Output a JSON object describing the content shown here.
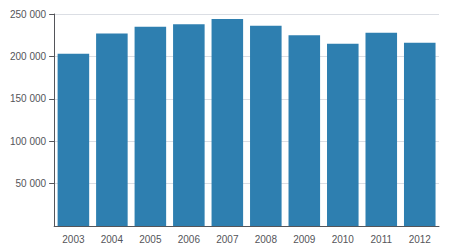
{
  "chart_data": {
    "type": "bar",
    "categories": [
      "2003",
      "2004",
      "2005",
      "2006",
      "2007",
      "2008",
      "2009",
      "2010",
      "2011",
      "2012"
    ],
    "values": [
      203000,
      227000,
      235000,
      238000,
      244000,
      236000,
      225000,
      215000,
      228000,
      216000
    ],
    "color": "#2e7fb0",
    "ylim": [
      0,
      250000
    ],
    "yticks": [
      {
        "value": 50000,
        "label": "50 000"
      },
      {
        "value": 100000,
        "label": "100 000"
      },
      {
        "value": 150000,
        "label": "150 000"
      },
      {
        "value": 200000,
        "label": "200 000"
      },
      {
        "value": 250000,
        "label": "250 000"
      }
    ],
    "grid": true
  }
}
